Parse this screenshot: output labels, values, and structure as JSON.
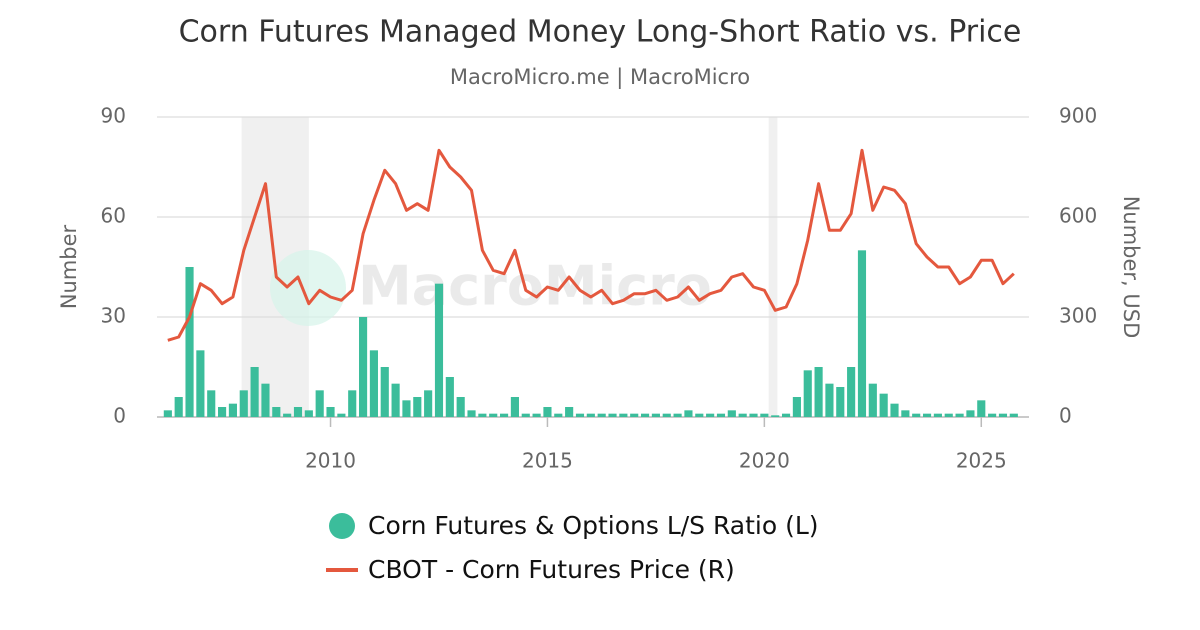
{
  "chart_data": {
    "type": "combo",
    "title": "Corn Futures Managed Money Long-Short Ratio vs. Price",
    "subtitle": "MacroMicro.me | MacroMicro",
    "watermark": "MacroMicro",
    "y_label": "Number",
    "y2_label": "Number, USD",
    "xlim": [
      2006,
      2026.1
    ],
    "xticks": [
      2010,
      2015,
      2020,
      2025
    ],
    "ylim": [
      0,
      90
    ],
    "yticks": [
      0,
      30,
      60,
      90
    ],
    "y2lim": [
      0,
      900
    ],
    "y2ticks": [
      0,
      300,
      600,
      900
    ],
    "grid": true,
    "shaded_ranges": [
      [
        2007.95,
        2009.5
      ],
      [
        2020.1,
        2020.3
      ]
    ],
    "x": [
      2006.25,
      2006.5,
      2006.75,
      2007,
      2007.25,
      2007.5,
      2007.75,
      2008,
      2008.25,
      2008.5,
      2008.75,
      2009,
      2009.25,
      2009.5,
      2009.75,
      2010,
      2010.25,
      2010.5,
      2010.75,
      2011,
      2011.25,
      2011.5,
      2011.75,
      2012,
      2012.25,
      2012.5,
      2012.75,
      2013,
      2013.25,
      2013.5,
      2013.75,
      2014,
      2014.25,
      2014.5,
      2014.75,
      2015,
      2015.25,
      2015.5,
      2015.75,
      2016,
      2016.25,
      2016.5,
      2016.75,
      2017,
      2017.25,
      2017.5,
      2017.75,
      2018,
      2018.25,
      2018.5,
      2018.75,
      2019,
      2019.25,
      2019.5,
      2019.75,
      2020,
      2020.25,
      2020.5,
      2020.75,
      2021,
      2021.25,
      2021.5,
      2021.75,
      2022,
      2022.25,
      2022.5,
      2022.75,
      2023,
      2023.25,
      2023.5,
      2023.75,
      2024,
      2024.25,
      2024.5,
      2024.75,
      2025,
      2025.25,
      2025.5,
      2025.75
    ],
    "series": [
      {
        "name": "Corn Futures & Options L/S Ratio (L)",
        "type": "bar",
        "axis": "y",
        "color": "#3bbd9b",
        "values": [
          2,
          6,
          45,
          20,
          8,
          3,
          4,
          8,
          15,
          10,
          3,
          1,
          3,
          2,
          8,
          3,
          1,
          8,
          30,
          20,
          15,
          10,
          5,
          6,
          8,
          40,
          12,
          6,
          2,
          1,
          1,
          1,
          6,
          1,
          1,
          3,
          1,
          3,
          1,
          1,
          1,
          1,
          1,
          1,
          1,
          1,
          1,
          1,
          2,
          1,
          1,
          1,
          2,
          1,
          1,
          1,
          0.5,
          1,
          6,
          14,
          15,
          10,
          9,
          15,
          50,
          10,
          7,
          4,
          2,
          1,
          1,
          1,
          1,
          1,
          2,
          5,
          1,
          1,
          1
        ]
      },
      {
        "name": "CBOT - Corn Futures Price (R)",
        "type": "line",
        "axis": "y2",
        "color": "#e4583e",
        "values": [
          230,
          240,
          300,
          400,
          380,
          340,
          360,
          500,
          600,
          700,
          420,
          390,
          420,
          340,
          380,
          360,
          350,
          380,
          550,
          650,
          740,
          700,
          620,
          640,
          620,
          800,
          750,
          720,
          680,
          500,
          440,
          430,
          500,
          380,
          360,
          390,
          380,
          420,
          380,
          360,
          380,
          340,
          350,
          370,
          370,
          380,
          350,
          360,
          390,
          350,
          370,
          380,
          420,
          430,
          390,
          380,
          320,
          330,
          400,
          530,
          700,
          560,
          560,
          610,
          800,
          620,
          690,
          680,
          640,
          520,
          480,
          450,
          450,
          400,
          420,
          470,
          470,
          400,
          430
        ]
      }
    ]
  }
}
